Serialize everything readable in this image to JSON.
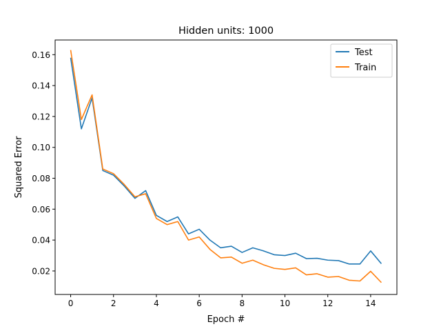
{
  "chart_data": {
    "type": "line",
    "title": "Hidden units: 1000",
    "xlabel": "Epoch #",
    "ylabel": "Squared Error",
    "xlim": [
      -0.725,
      15.225
    ],
    "ylim": [
      0.0048,
      0.1695
    ],
    "xticks": [
      0,
      2,
      4,
      6,
      8,
      10,
      12,
      14
    ],
    "yticks": [
      0.02,
      0.04,
      0.06,
      0.08,
      0.1,
      0.12,
      0.14,
      0.16
    ],
    "ytick_labels": [
      "0.02",
      "0.04",
      "0.06",
      "0.08",
      "0.10",
      "0.12",
      "0.14",
      "0.16"
    ],
    "grid": false,
    "legend_position": "top-right",
    "x": [
      0,
      0.5,
      1,
      1.5,
      2,
      2.5,
      3,
      3.5,
      4,
      4.5,
      5,
      5.5,
      6,
      6.5,
      7,
      7.5,
      8,
      8.5,
      9,
      9.5,
      10,
      10.5,
      11,
      11.5,
      12,
      12.5,
      13,
      13.5,
      14,
      14.5
    ],
    "series": [
      {
        "name": "Test",
        "color": "#1f77b4",
        "values": [
          0.158,
          0.112,
          0.132,
          0.085,
          0.082,
          0.075,
          0.067,
          0.072,
          0.056,
          0.052,
          0.055,
          0.044,
          0.047,
          0.04,
          0.035,
          0.036,
          0.032,
          0.035,
          0.033,
          0.0305,
          0.03,
          0.0315,
          0.028,
          0.0282,
          0.027,
          0.0267,
          0.0245,
          0.0245,
          0.033,
          0.0247
        ]
      },
      {
        "name": "Train",
        "color": "#ff7f0e",
        "values": [
          0.163,
          0.118,
          0.134,
          0.086,
          0.083,
          0.076,
          0.068,
          0.07,
          0.054,
          0.05,
          0.052,
          0.04,
          0.042,
          0.034,
          0.0285,
          0.029,
          0.025,
          0.027,
          0.024,
          0.0217,
          0.021,
          0.022,
          0.0175,
          0.0182,
          0.016,
          0.0164,
          0.014,
          0.0135,
          0.0198,
          0.0125
        ]
      }
    ]
  }
}
